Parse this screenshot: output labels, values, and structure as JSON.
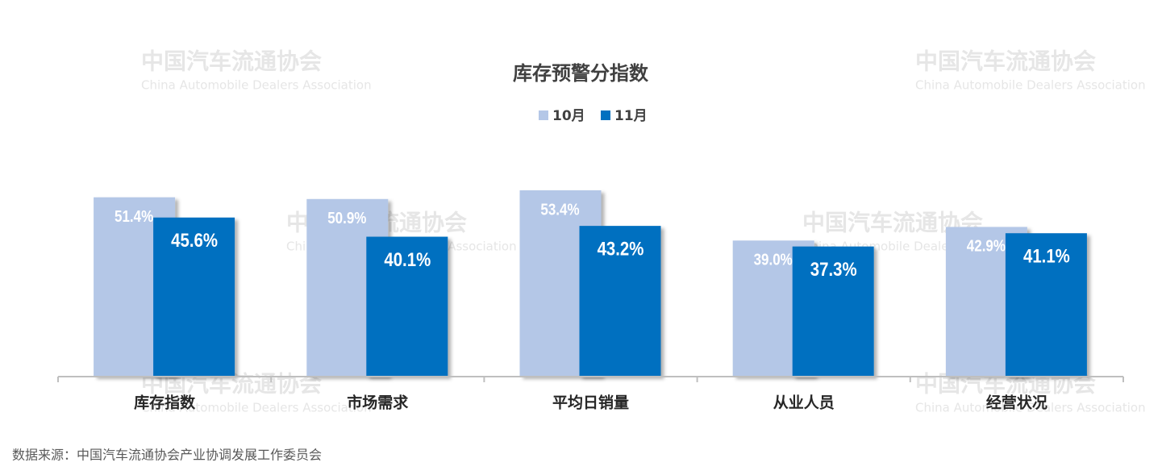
{
  "chart_data": {
    "type": "bar",
    "title": "库存预警分指数",
    "categories": [
      "库存指数",
      "市场需求",
      "平均日销量",
      "从业人员",
      "经营状况"
    ],
    "series": [
      {
        "name": "10月",
        "color": "#b4c7e7",
        "values": [
          51.4,
          50.9,
          53.4,
          39.0,
          42.9
        ],
        "value_labels": [
          "51.4%",
          "50.9%",
          "53.4%",
          "39.0%",
          "42.9%"
        ]
      },
      {
        "name": "11月",
        "color": "#0070c0",
        "values": [
          45.6,
          40.1,
          43.2,
          37.3,
          41.1
        ],
        "value_labels": [
          "45.6%",
          "40.1%",
          "43.2%",
          "37.3%",
          "41.1%"
        ]
      }
    ],
    "legend": "top",
    "source": "数据来源：中国汽车流通协会产业协调发展工作委员会",
    "watermark": [
      "中国汽车流通协会",
      "China Automobile Dealers Association"
    ]
  }
}
